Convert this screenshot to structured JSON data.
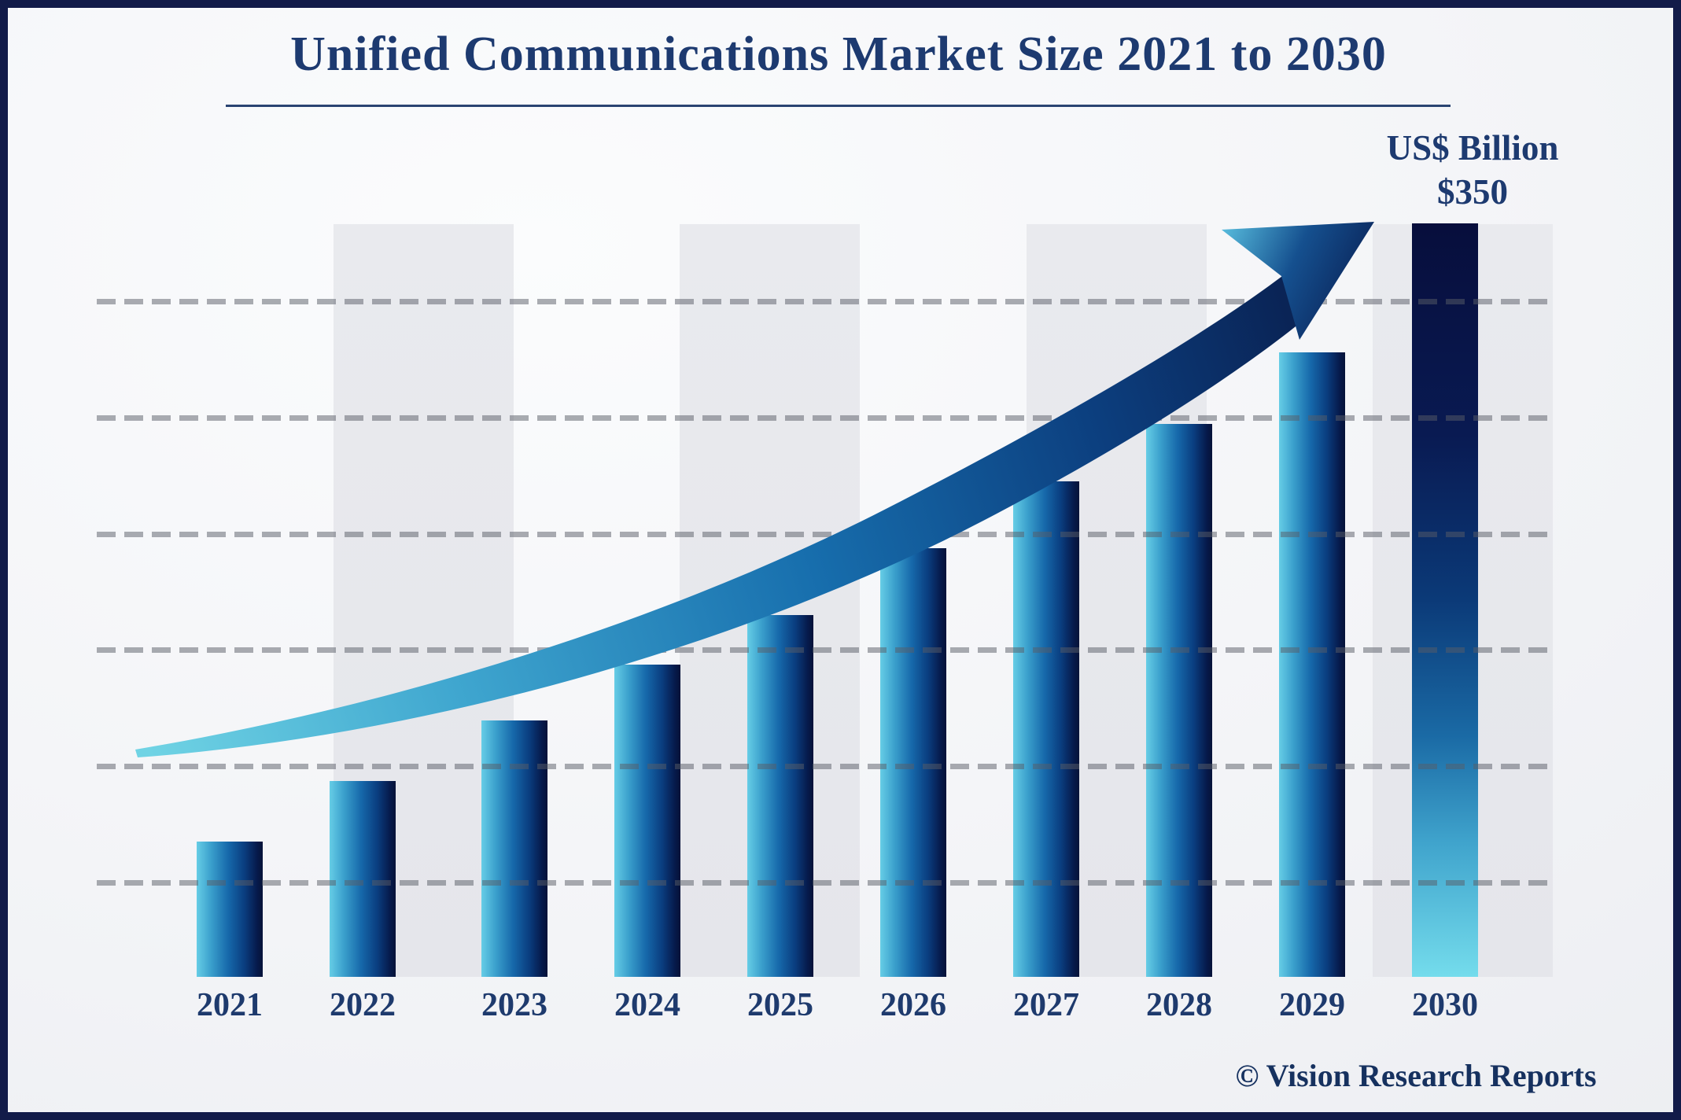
{
  "title": "Unified Communications Market Size 2021 to 2030",
  "unit_label": {
    "line1": "US$ Billion",
    "line2": "$350"
  },
  "footer": {
    "copyright": "© Vision Research Reports"
  },
  "colors": {
    "text_navy": "#1d3a70",
    "frame_border": "#121b49",
    "bar_cyan": "#66cde6",
    "bar_navy": "#051238",
    "band_gray": "#e7e8ec",
    "gridline_gray": "#9b9ca0",
    "arrow_light": "#6fd3e4",
    "arrow_dark": "#0a2050"
  },
  "chart_data": {
    "type": "bar",
    "title": "Unified Communications Market Size 2021 to 2030",
    "xlabel": "",
    "ylabel": "US$ Billion",
    "categories": [
      "2021",
      "2022",
      "2023",
      "2024",
      "2025",
      "2026",
      "2027",
      "2028",
      "2029",
      "2030"
    ],
    "values": [
      63,
      91,
      119,
      145,
      168,
      199,
      230,
      257,
      290,
      350
    ],
    "labeled_value": {
      "category": "2030",
      "text": "$350"
    },
    "ylim": [
      0,
      350
    ],
    "grid": "dashed horizontal, 6 lines, unlabeled",
    "legend": "none",
    "annotations": [
      "US$ Billion",
      "$350",
      "upward curved growth arrow"
    ]
  }
}
